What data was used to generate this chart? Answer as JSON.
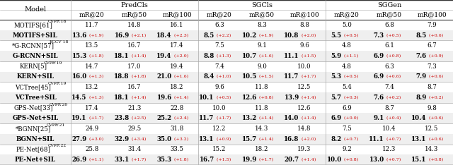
{
  "rows": [
    {
      "model": "MOTIFS[61]",
      "sup": "CVPR’18",
      "sil": false,
      "vals": [
        "11.7",
        "14.8",
        "16.1",
        "6.3",
        "8.3",
        "8.8",
        "5.0",
        "6.8",
        "7.9"
      ],
      "deltas": [
        "",
        "",
        "",
        "",
        "",
        "",
        "",
        "",
        ""
      ]
    },
    {
      "model": "MOTIFS+SIL",
      "sup": "",
      "sil": true,
      "vals": [
        "13.6",
        "16.9",
        "18.4",
        "8.5",
        "10.2",
        "10.8",
        "5.5",
        "7.3",
        "8.5"
      ],
      "deltas": [
        "+1.9",
        "+2.1",
        "+2.3",
        "+2.2",
        "+1.9",
        "+2.0",
        "+0.5",
        "+0.5",
        "+0.6"
      ]
    },
    {
      "model": "*G-RCNN[57]",
      "sup": "ECCV’18",
      "sil": false,
      "vals": [
        "13.5",
        "16.7",
        "17.4",
        "7.5",
        "9.1",
        "9.6",
        "4.8",
        "6.1",
        "6.7"
      ],
      "deltas": [
        "",
        "",
        "",
        "",
        "",
        "",
        "",
        "",
        ""
      ]
    },
    {
      "model": "G-RCNN+SIL",
      "sup": "",
      "sil": true,
      "vals": [
        "15.3",
        "18.1",
        "19.4",
        "8.8",
        "10.7",
        "11.1",
        "5.9",
        "6.9",
        "7.6"
      ],
      "deltas": [
        "+1.8",
        "+1.4",
        "+2.0",
        "+1.3",
        "+1.6",
        "+1.5",
        "+1.1",
        "+0.8",
        "+0.9"
      ]
    },
    {
      "model": "KERN[5]",
      "sup": "CVPR’19",
      "sil": false,
      "vals": [
        "14.7",
        "17.0",
        "19.4",
        "7.4",
        "9.0",
        "10.0",
        "4.8",
        "6.3",
        "7.3"
      ],
      "deltas": [
        "",
        "",
        "",
        "",
        "",
        "",
        "",
        "",
        ""
      ]
    },
    {
      "model": "KERN+SIL",
      "sup": "",
      "sil": true,
      "vals": [
        "16.0",
        "18.8",
        "21.0",
        "8.4",
        "10.5",
        "11.7",
        "5.3",
        "6.9",
        "7.9"
      ],
      "deltas": [
        "+1.3",
        "+1.8",
        "+1.6",
        "+1.0",
        "+1.5",
        "+1.7",
        "+0.5",
        "+0.6",
        "+0.6"
      ]
    },
    {
      "model": "VCTree[45]",
      "sup": "CVPR’19",
      "sil": false,
      "vals": [
        "13.2",
        "16.7",
        "18.2",
        "9.6",
        "11.8",
        "12.5",
        "5.4",
        "7.4",
        "8.7"
      ],
      "deltas": [
        "",
        "",
        "",
        "",
        "",
        "",
        "",
        "",
        ""
      ]
    },
    {
      "model": "VCTree+SIL",
      "sup": "",
      "sil": true,
      "vals": [
        "14.5",
        "18.1",
        "19.6",
        "10.1",
        "12.6",
        "13.9",
        "5.7",
        "7.6",
        "8.9"
      ],
      "deltas": [
        "+1.3",
        "+1.4",
        "+1.4",
        "+0.5",
        "+0.8",
        "+1.4",
        "+0.3",
        "+0.2",
        "+0.2"
      ]
    },
    {
      "model": "GPS-Net[33]",
      "sup": "CVPR’20",
      "sil": false,
      "vals": [
        "17.4",
        "21.3",
        "22.8",
        "10.0",
        "11.8",
        "12.6",
        "6.9",
        "8.7",
        "9.8"
      ],
      "deltas": [
        "",
        "",
        "",
        "",
        "",
        "",
        "",
        "",
        ""
      ]
    },
    {
      "model": "GPS-Net+SIL",
      "sup": "",
      "sil": true,
      "vals": [
        "19.1",
        "23.8",
        "25.2",
        "11.7",
        "13.2",
        "14.0",
        "6.9",
        "9.1",
        "10.4"
      ],
      "deltas": [
        "+1.7",
        "+2.5",
        "+2.4",
        "+1.7",
        "+1.4",
        "+1.4",
        "+0.0",
        "+0.4",
        "+0.6"
      ]
    },
    {
      "model": "*BGNN[25]",
      "sup": "CVPR’21",
      "sil": false,
      "vals": [
        "24.9",
        "29.5",
        "31.8",
        "12.2",
        "14.3",
        "14.8",
        "7.5",
        "10.4",
        "12.5"
      ],
      "deltas": [
        "",
        "",
        "",
        "",
        "",
        "",
        "",
        "",
        ""
      ]
    },
    {
      "model": "BGNN+SIL",
      "sup": "",
      "sil": true,
      "vals": [
        "27.9",
        "32.9",
        "35.0",
        "13.1",
        "15.7",
        "16.8",
        "8.2",
        "11.1",
        "13.1"
      ],
      "deltas": [
        "+3.0",
        "+3.4",
        "+3.2",
        "+0.9",
        "+1.4",
        "+2.0",
        "+0.7",
        "+0.7",
        "+0.6"
      ]
    },
    {
      "model": "PE-Net[68]",
      "sup": "CVPR’22",
      "sil": false,
      "vals": [
        "25.8",
        "31.4",
        "33.5",
        "15.2",
        "18.2",
        "19.3",
        "9.2",
        "12.3",
        "14.3"
      ],
      "deltas": [
        "",
        "",
        "",
        "",
        "",
        "",
        "",
        "",
        ""
      ]
    },
    {
      "model": "PE-Net+SIL",
      "sup": "",
      "sil": true,
      "vals": [
        "26.9",
        "33.1",
        "35.3",
        "16.7",
        "19.9",
        "20.7",
        "10.0",
        "13.0",
        "15.1"
      ],
      "deltas": [
        "+1.1",
        "+1.7",
        "+1.8",
        "+1.5",
        "+1.7",
        "+1.4",
        "+0.8",
        "+0.7",
        "+0.8"
      ]
    }
  ],
  "group_headers": [
    "PredCls",
    "SGCls",
    "SGGen"
  ],
  "sub_headers": [
    "mR@20",
    "mR@50",
    "mR@100",
    "mR@20",
    "mR@50",
    "mR@100",
    "mR@20",
    "mR@50",
    "mR@100"
  ],
  "model_header": "Model",
  "bg_sil": "#efefef",
  "bg_norm": "#ffffff",
  "line_color": "#888888",
  "line_color_heavy": "#333333",
  "red": "#cc0000",
  "black": "#000000"
}
